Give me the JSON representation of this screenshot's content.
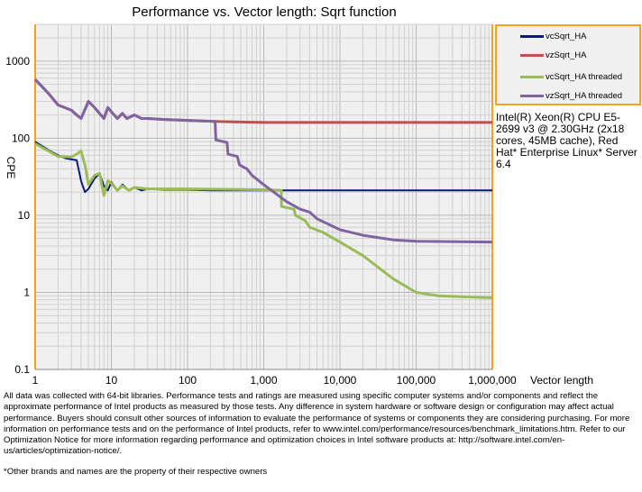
{
  "chart_data": {
    "type": "line",
    "title": "Performance vs. Vector length: Sqrt function",
    "xlabel": "Vector length",
    "ylabel": "CPE",
    "xscale": "log",
    "yscale": "log",
    "xlim": [
      1,
      1000000
    ],
    "ylim": [
      0.1,
      3000
    ],
    "xticks": [
      1,
      10,
      100,
      1000,
      10000,
      100000,
      1000000
    ],
    "xtick_labels": [
      "1",
      "10",
      "100",
      "1,000",
      "10,000",
      "100,000",
      "1,000,000"
    ],
    "yticks": [
      0.1,
      1,
      10,
      100,
      1000
    ],
    "ytick_labels": [
      "0.1",
      "1",
      "10",
      "100",
      "1000"
    ],
    "grid": true,
    "legend_position": "right",
    "series": [
      {
        "name": "vcSqrt_HA",
        "color": "#0a1a7a",
        "points": [
          [
            1,
            90
          ],
          [
            1.5,
            70
          ],
          [
            2,
            60
          ],
          [
            2.5,
            55
          ],
          [
            3,
            53
          ],
          [
            3.5,
            52
          ],
          [
            4,
            28
          ],
          [
            4.5,
            20
          ],
          [
            5,
            22
          ],
          [
            6,
            30
          ],
          [
            7,
            35
          ],
          [
            8,
            24
          ],
          [
            9,
            21
          ],
          [
            10,
            27
          ],
          [
            12,
            21
          ],
          [
            14,
            25
          ],
          [
            17,
            21
          ],
          [
            20,
            23
          ],
          [
            25,
            21
          ],
          [
            30,
            22
          ],
          [
            50,
            21.5
          ],
          [
            100,
            21.5
          ],
          [
            200,
            21
          ],
          [
            1000,
            21
          ],
          [
            1000000,
            21
          ]
        ]
      },
      {
        "name": "vzSqrt_HA",
        "color": "#c0504d",
        "points": [
          [
            1,
            580
          ],
          [
            1.5,
            380
          ],
          [
            2,
            270
          ],
          [
            3,
            230
          ],
          [
            3.5,
            200
          ],
          [
            4,
            180
          ],
          [
            5,
            300
          ],
          [
            6,
            250
          ],
          [
            7,
            210
          ],
          [
            8,
            180
          ],
          [
            9,
            250
          ],
          [
            10,
            220
          ],
          [
            12,
            180
          ],
          [
            14,
            210
          ],
          [
            16,
            180
          ],
          [
            20,
            200
          ],
          [
            25,
            180
          ],
          [
            30,
            180
          ],
          [
            50,
            175
          ],
          [
            100,
            170
          ],
          [
            230,
            165
          ],
          [
            1000,
            160
          ],
          [
            1000000,
            160
          ]
        ]
      },
      {
        "name": "vcSqrt_HA threaded",
        "color": "#9bbb59",
        "points": [
          [
            1,
            85
          ],
          [
            1.5,
            68
          ],
          [
            2,
            58
          ],
          [
            3,
            57
          ],
          [
            3.5,
            62
          ],
          [
            4,
            68
          ],
          [
            4.5,
            45
          ],
          [
            5,
            25
          ],
          [
            6,
            33
          ],
          [
            7,
            35
          ],
          [
            8,
            18
          ],
          [
            9,
            28
          ],
          [
            10,
            26
          ],
          [
            12,
            21
          ],
          [
            14,
            24
          ],
          [
            17,
            21
          ],
          [
            20,
            23
          ],
          [
            30,
            22
          ],
          [
            100,
            22
          ],
          [
            1000,
            21.5
          ],
          [
            1700,
            21
          ],
          [
            1710,
            13
          ],
          [
            2500,
            12
          ],
          [
            2600,
            10
          ],
          [
            3500,
            8.5
          ],
          [
            4000,
            7
          ],
          [
            6000,
            6
          ],
          [
            10000,
            4.5
          ],
          [
            20000,
            3
          ],
          [
            50000,
            1.5
          ],
          [
            100000,
            1
          ],
          [
            200000,
            0.9
          ],
          [
            1000000,
            0.85
          ]
        ]
      },
      {
        "name": "vzSqrt_HA threaded",
        "color": "#8064a2",
        "points": [
          [
            1,
            580
          ],
          [
            1.5,
            380
          ],
          [
            2,
            270
          ],
          [
            3,
            230
          ],
          [
            3.5,
            200
          ],
          [
            4,
            180
          ],
          [
            5,
            300
          ],
          [
            6,
            250
          ],
          [
            7,
            210
          ],
          [
            8,
            180
          ],
          [
            9,
            250
          ],
          [
            10,
            220
          ],
          [
            12,
            180
          ],
          [
            14,
            210
          ],
          [
            16,
            180
          ],
          [
            20,
            200
          ],
          [
            25,
            180
          ],
          [
            30,
            180
          ],
          [
            50,
            175
          ],
          [
            100,
            170
          ],
          [
            230,
            165
          ],
          [
            235,
            95
          ],
          [
            330,
            88
          ],
          [
            340,
            62
          ],
          [
            450,
            58
          ],
          [
            480,
            45
          ],
          [
            600,
            40
          ],
          [
            700,
            33
          ],
          [
            1000,
            25
          ],
          [
            2000,
            15
          ],
          [
            3000,
            12
          ],
          [
            4000,
            11
          ],
          [
            5000,
            9
          ],
          [
            10000,
            6.5
          ],
          [
            20000,
            5.5
          ],
          [
            50000,
            4.8
          ],
          [
            100000,
            4.6
          ],
          [
            1000000,
            4.5
          ]
        ]
      }
    ]
  },
  "annotation": "Intel(R) Xeon(R) CPU E5-2699 v3 @ 2.30GHz (2x18 cores, 45MB cache), Red Hat* Enterprise Linux* Server 6.4",
  "disclaimer": "All data was collected with 64-bit libraries. Performance tests and ratings are measured using specific computer systems and/or components and reflect the approximate performance of Intel products as measured by those tests. Any difference in system hardware or software design or configuration may affect actual performance. Buyers should consult other sources of information to evaluate the performance of systems or components they are considering purchasing. For more information on performance tests and on the performance of Intel products, refer to www.intel.com/performance/resources/benchmark_limitations.htm. Refer to our Optimization Notice for more information regarding performance and optimization choices in Intel software products at: http://software.intel.com/en-us/articles/optimization-notice/.",
  "footnote": "*Other brands and names are the property of their respective owners"
}
